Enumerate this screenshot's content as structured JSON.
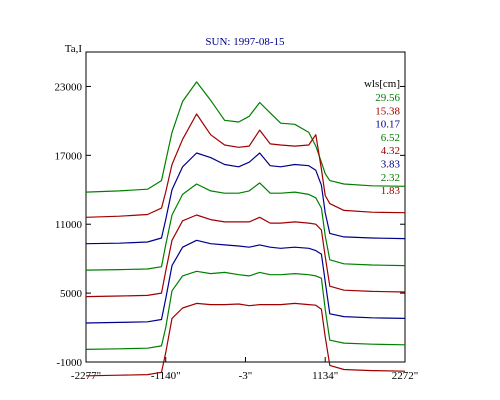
{
  "chart_data": {
    "type": "line",
    "title": "SUN: 1997-08-15",
    "ylabel": "Ta,I",
    "xlabel": "",
    "legend_title": "wls[cm]",
    "legend_position": "top-right",
    "xlim": [
      -2277,
      2272
    ],
    "ylim": [
      -1000,
      26000
    ],
    "x_ticks": [
      -2277,
      -1140,
      -3,
      1134,
      2272
    ],
    "x_tick_labels": [
      "-2277\"",
      "-1140\"",
      "-3\"",
      "1134\"",
      "2272\""
    ],
    "y_ticks": [
      -1000,
      5000,
      11000,
      17000,
      23000
    ],
    "y_tick_labels": [
      "-1000",
      "5000",
      "11000",
      "17000",
      "23000"
    ],
    "grid": false,
    "x": [
      -2277,
      -1800,
      -1400,
      -1200,
      -1140,
      -1050,
      -900,
      -700,
      -500,
      -300,
      -100,
      50,
      200,
      350,
      500,
      700,
      900,
      1000,
      1080,
      1134,
      1200,
      1400,
      1800,
      2272
    ],
    "series": [
      {
        "name": "29.56",
        "color": "#008000",
        "values": [
          13800,
          13900,
          14050,
          14800,
          16500,
          19000,
          21700,
          23400,
          21800,
          20050,
          19900,
          20400,
          21600,
          20700,
          19800,
          19700,
          19000,
          17800,
          16400,
          15400,
          14800,
          14500,
          14350,
          14300
        ]
      },
      {
        "name": "15.38",
        "color": "#a00000",
        "values": [
          11600,
          11700,
          11850,
          12400,
          13800,
          16200,
          18400,
          20600,
          18800,
          17900,
          17700,
          17800,
          19200,
          18000,
          17900,
          17800,
          17900,
          18800,
          15800,
          13500,
          12800,
          12200,
          12050,
          12000
        ]
      },
      {
        "name": "10.17",
        "color": "#00008b",
        "values": [
          9300,
          9350,
          9450,
          9800,
          11400,
          14000,
          16000,
          17200,
          16800,
          16200,
          16000,
          16400,
          17200,
          16100,
          16000,
          16200,
          16100,
          15700,
          14400,
          12000,
          10200,
          9900,
          9800,
          9750
        ]
      },
      {
        "name": "6.52",
        "color": "#008000",
        "values": [
          7000,
          7050,
          7100,
          7300,
          9200,
          11800,
          13600,
          14500,
          13900,
          13700,
          13700,
          13900,
          14600,
          13700,
          13700,
          13800,
          13600,
          13300,
          12400,
          10000,
          7900,
          7550,
          7450,
          7400
        ]
      },
      {
        "name": "4.32",
        "color": "#a00000",
        "values": [
          4700,
          4750,
          4800,
          5000,
          6900,
          9600,
          11300,
          11800,
          11400,
          11200,
          11200,
          11200,
          11600,
          11100,
          11100,
          11200,
          11100,
          11000,
          10500,
          8200,
          5600,
          5250,
          5150,
          5100
        ]
      },
      {
        "name": "3.83",
        "color": "#00008b",
        "values": [
          2400,
          2450,
          2500,
          2700,
          4500,
          7400,
          9000,
          9600,
          9300,
          9200,
          9100,
          9000,
          9200,
          9000,
          8900,
          9000,
          8900,
          8700,
          8400,
          6000,
          3200,
          2950,
          2850,
          2800
        ]
      },
      {
        "name": "2.32",
        "color": "#008000",
        "values": [
          100,
          150,
          200,
          400,
          2000,
          5200,
          6500,
          6900,
          6700,
          6800,
          6600,
          6500,
          6800,
          6600,
          6600,
          6700,
          6600,
          6500,
          6300,
          3600,
          900,
          650,
          550,
          500
        ]
      },
      {
        "name": "1.83",
        "color": "#a00000",
        "values": [
          -2200,
          -2150,
          -2100,
          -1900,
          -200,
          2800,
          3700,
          4100,
          4000,
          4000,
          4050,
          3900,
          4000,
          4000,
          4000,
          4100,
          4000,
          3950,
          3600,
          1200,
          -1300,
          -1650,
          -1750,
          -1800
        ]
      }
    ]
  }
}
